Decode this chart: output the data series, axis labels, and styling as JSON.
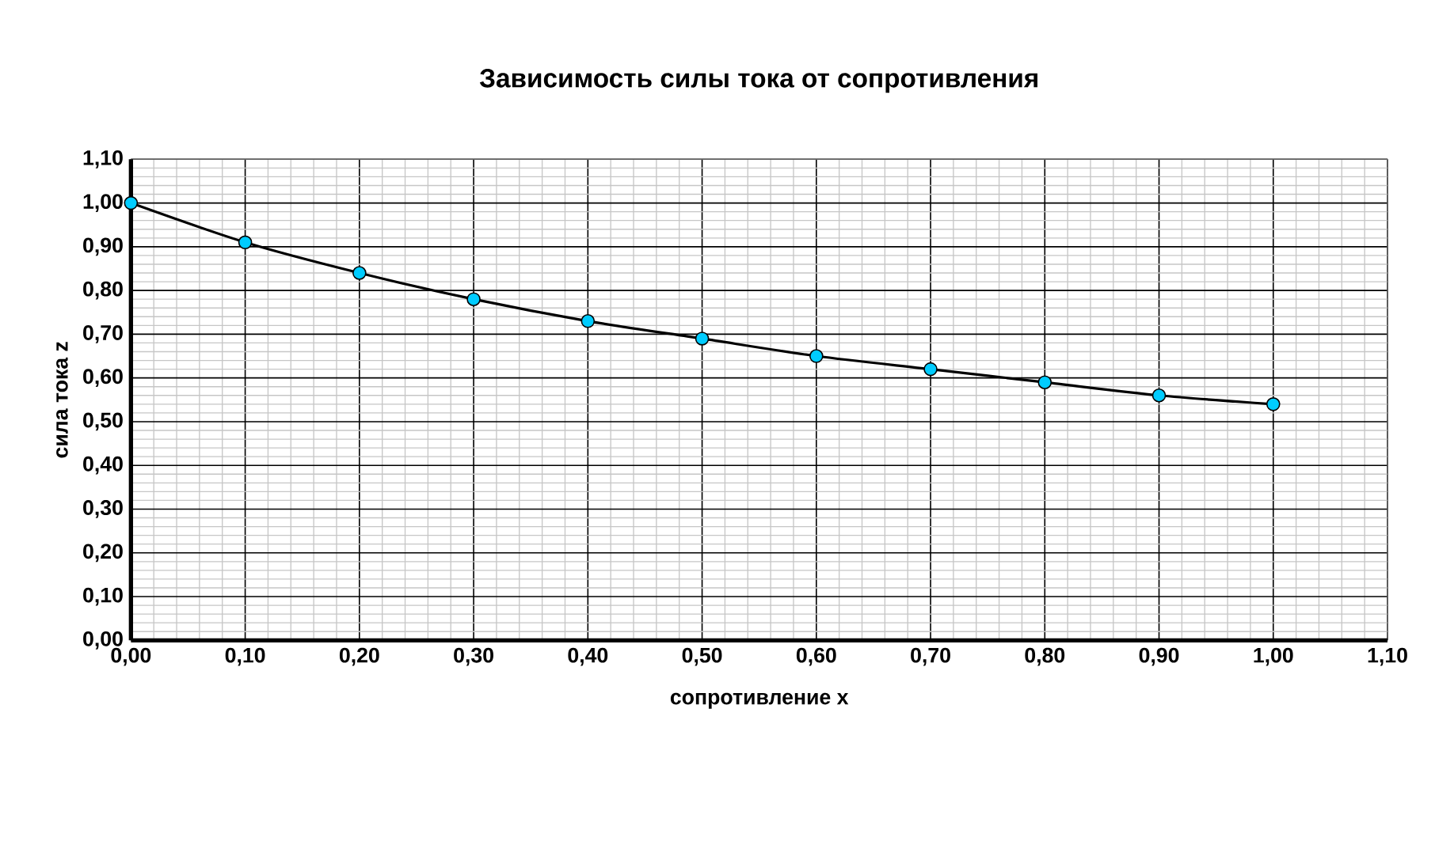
{
  "chart_data": {
    "type": "line",
    "title": "Зависимость силы тока от сопротивления",
    "xlabel": "сопротивление x",
    "ylabel": "сила тока z",
    "x": [
      0,
      0.1,
      0.2,
      0.3,
      0.4,
      0.5,
      0.6,
      0.7,
      0.8,
      0.9,
      1.0
    ],
    "series": [
      {
        "color": "#00ccff",
        "values": [
          1.0,
          0.91,
          0.84,
          0.78,
          0.73,
          0.69,
          0.65,
          0.62,
          0.59,
          0.56,
          0.54
        ]
      }
    ],
    "xlim": [
      0,
      1.1
    ],
    "ylim": [
      0,
      1.1
    ],
    "xticks": [
      {
        "value": 0,
        "label": "0,00"
      },
      {
        "value": 0.1,
        "label": "0,10"
      },
      {
        "value": 0.2,
        "label": "0,20"
      },
      {
        "value": 0.3,
        "label": "0,30"
      },
      {
        "value": 0.4,
        "label": "0,40"
      },
      {
        "value": 0.5,
        "label": "0,50"
      },
      {
        "value": 0.6,
        "label": "0,60"
      },
      {
        "value": 0.7,
        "label": "0,70"
      },
      {
        "value": 0.8,
        "label": "0,80"
      },
      {
        "value": 0.9,
        "label": "0,90"
      },
      {
        "value": 1.0,
        "label": "1,00"
      },
      {
        "value": 1.1,
        "label": "1,10"
      }
    ],
    "yticks": [
      {
        "value": 0,
        "label": "0,00"
      },
      {
        "value": 0.1,
        "label": "0,10"
      },
      {
        "value": 0.2,
        "label": "0,20"
      },
      {
        "value": 0.3,
        "label": "0,30"
      },
      {
        "value": 0.4,
        "label": "0,40"
      },
      {
        "value": 0.5,
        "label": "0,50"
      },
      {
        "value": 0.6,
        "label": "0,60"
      },
      {
        "value": 0.7,
        "label": "0,70"
      },
      {
        "value": 0.8,
        "label": "0,80"
      },
      {
        "value": 0.9,
        "label": "0,90"
      },
      {
        "value": 1.0,
        "label": "1,00"
      },
      {
        "value": 1.1,
        "label": "1,10"
      }
    ],
    "grid": true,
    "marker": "circle"
  }
}
